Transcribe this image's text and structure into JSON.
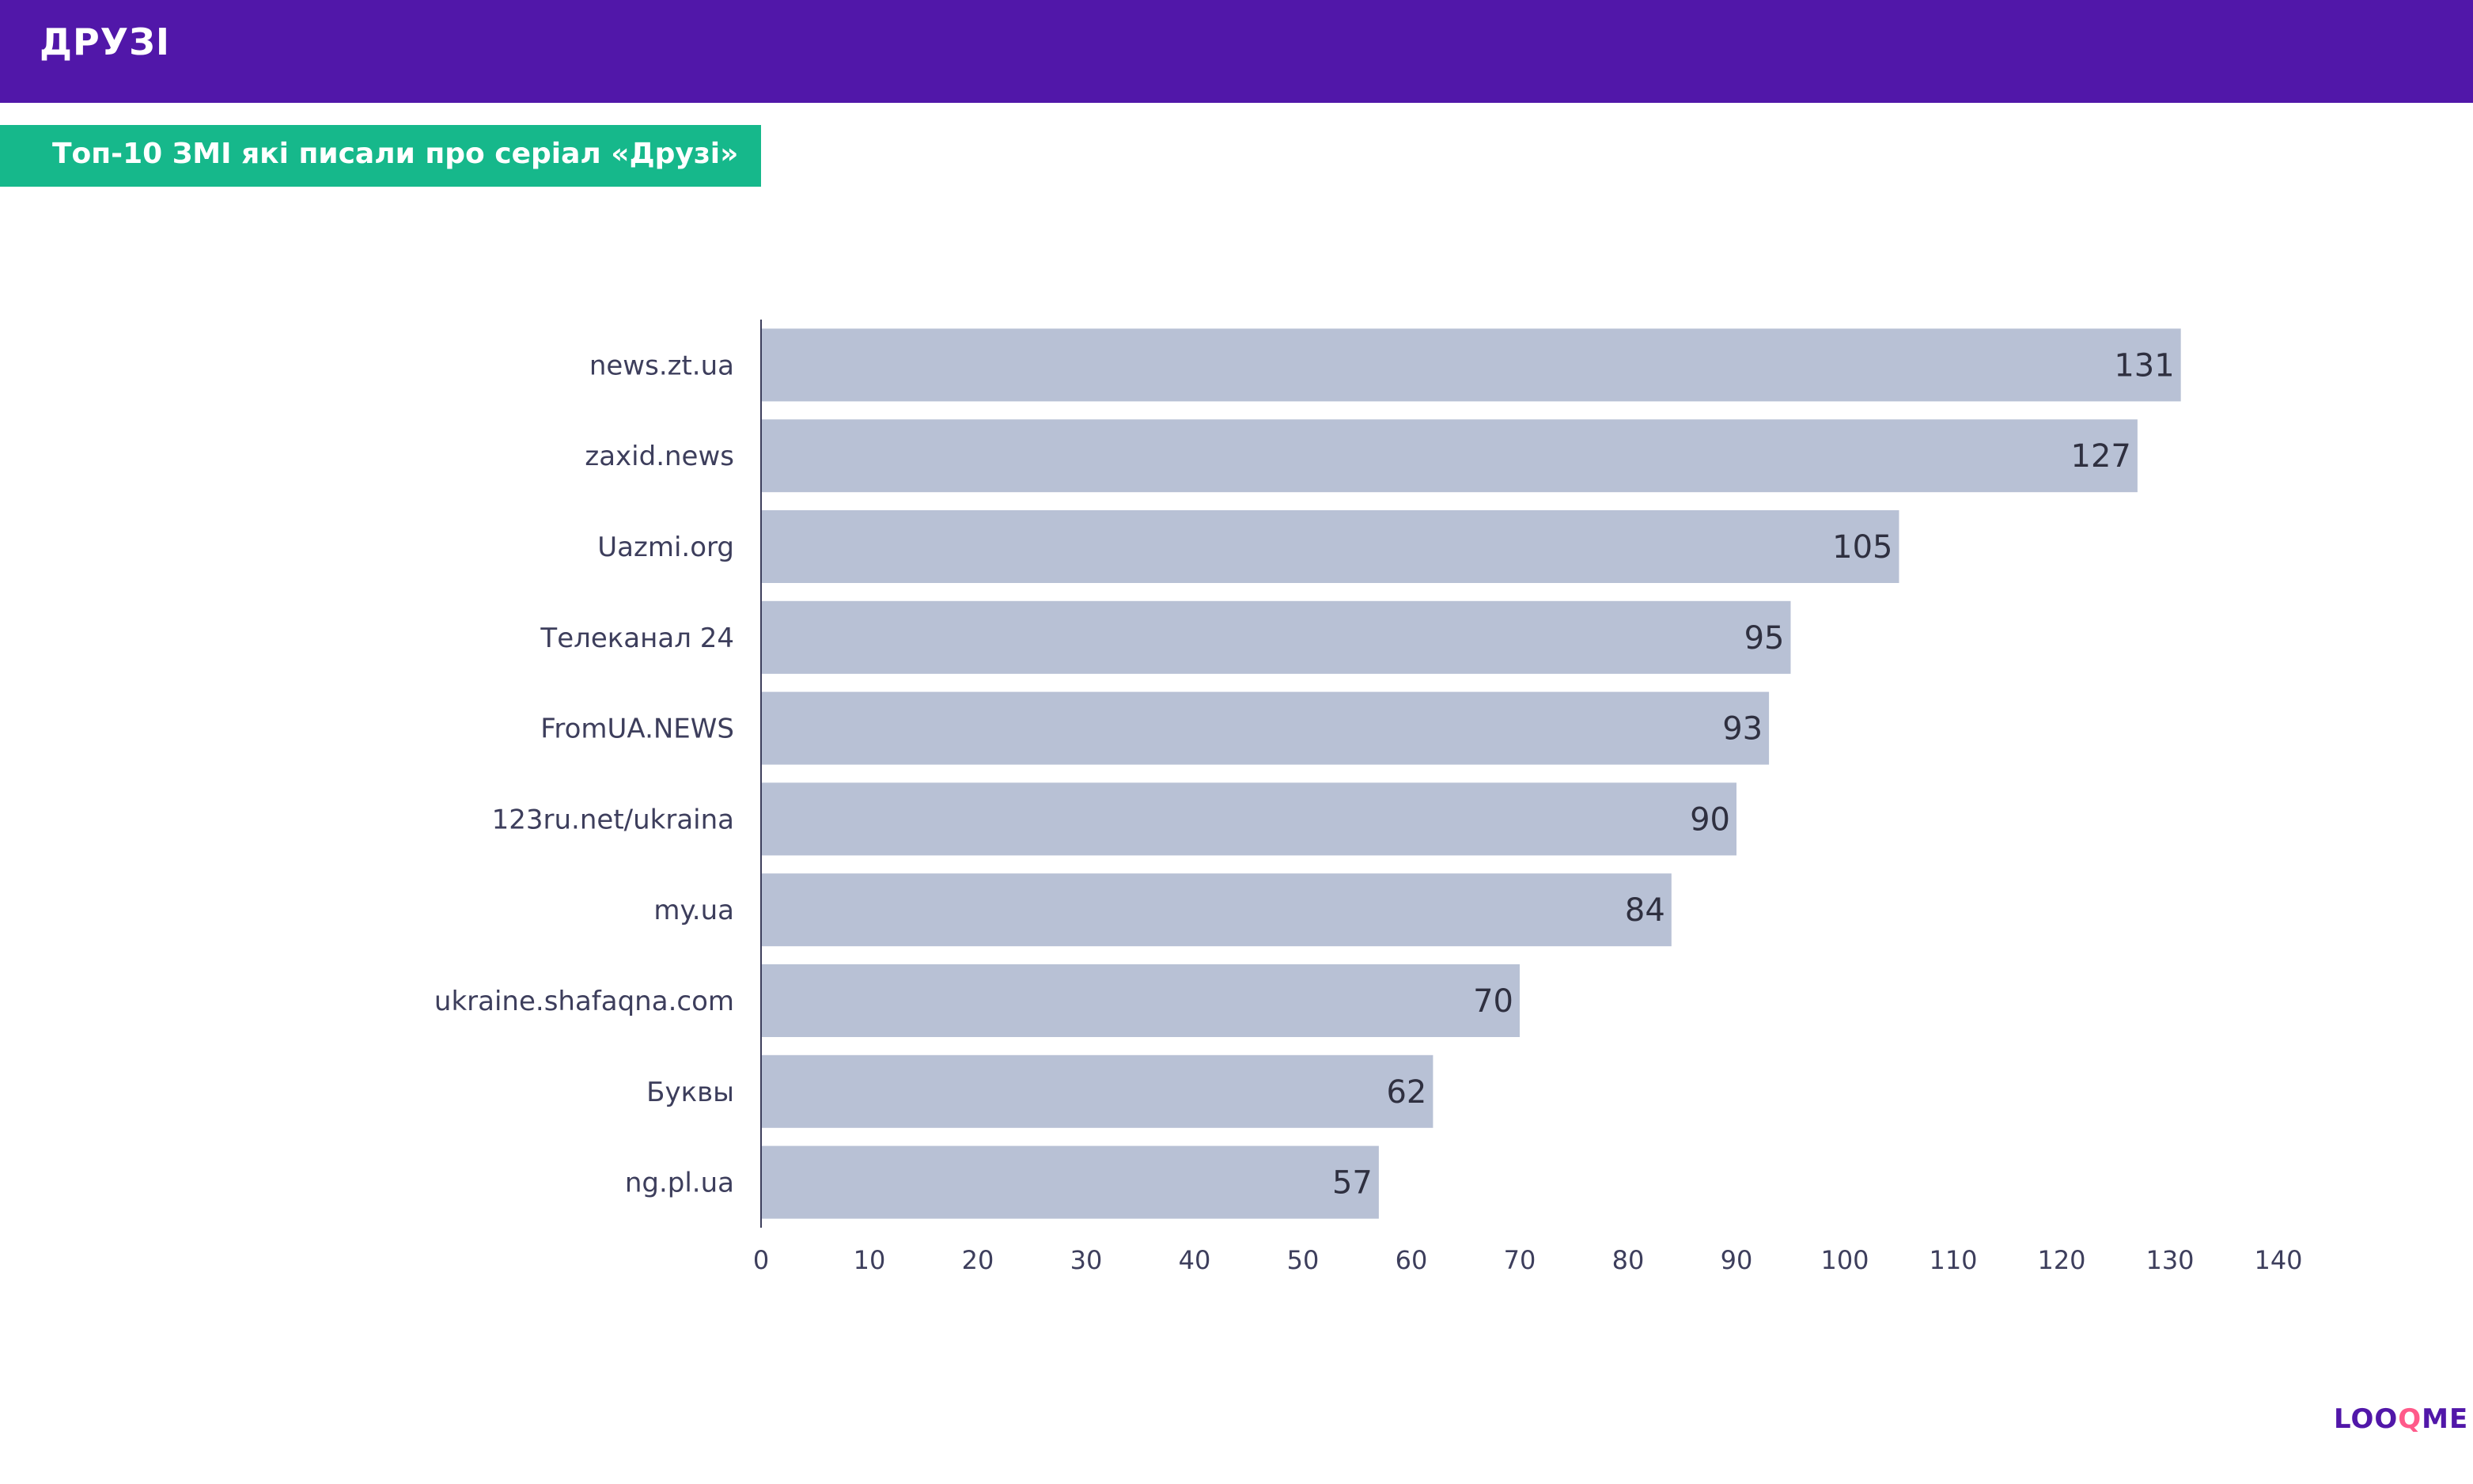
{
  "header": {
    "title": "ДРУЗІ"
  },
  "subtitle": "Топ-10 ЗМІ які писали про серіал «Друзі»",
  "logo": {
    "part1": "LOO",
    "part2": "Q",
    "part3": "ME"
  },
  "colors": {
    "header": "#5117a9",
    "banner": "#16b88b",
    "bar": "#b8c1d5",
    "label": "#3d3e5c",
    "value": "#2f3040",
    "axis": "#3d3e5c"
  },
  "chart_data": {
    "type": "bar",
    "orientation": "horizontal",
    "title": "Топ-10 ЗМІ які писали про серіал «Друзі»",
    "categories": [
      "news.zt.ua",
      "zaxid.news",
      "Uazmi.org",
      "Телеканал 24",
      "FromUA.NEWS",
      "123ru.net/ukraina",
      "my.ua",
      "ukraine.shafaqna.com",
      "Буквы",
      "ng.pl.ua"
    ],
    "values": [
      131,
      127,
      105,
      95,
      93,
      90,
      84,
      70,
      62,
      57
    ],
    "xlim": [
      0,
      140
    ],
    "xticks": [
      0,
      10,
      20,
      30,
      40,
      50,
      60,
      70,
      80,
      90,
      100,
      110,
      120,
      130,
      140
    ],
    "xlabel": "",
    "ylabel": "",
    "grid": false,
    "legend": "none"
  }
}
